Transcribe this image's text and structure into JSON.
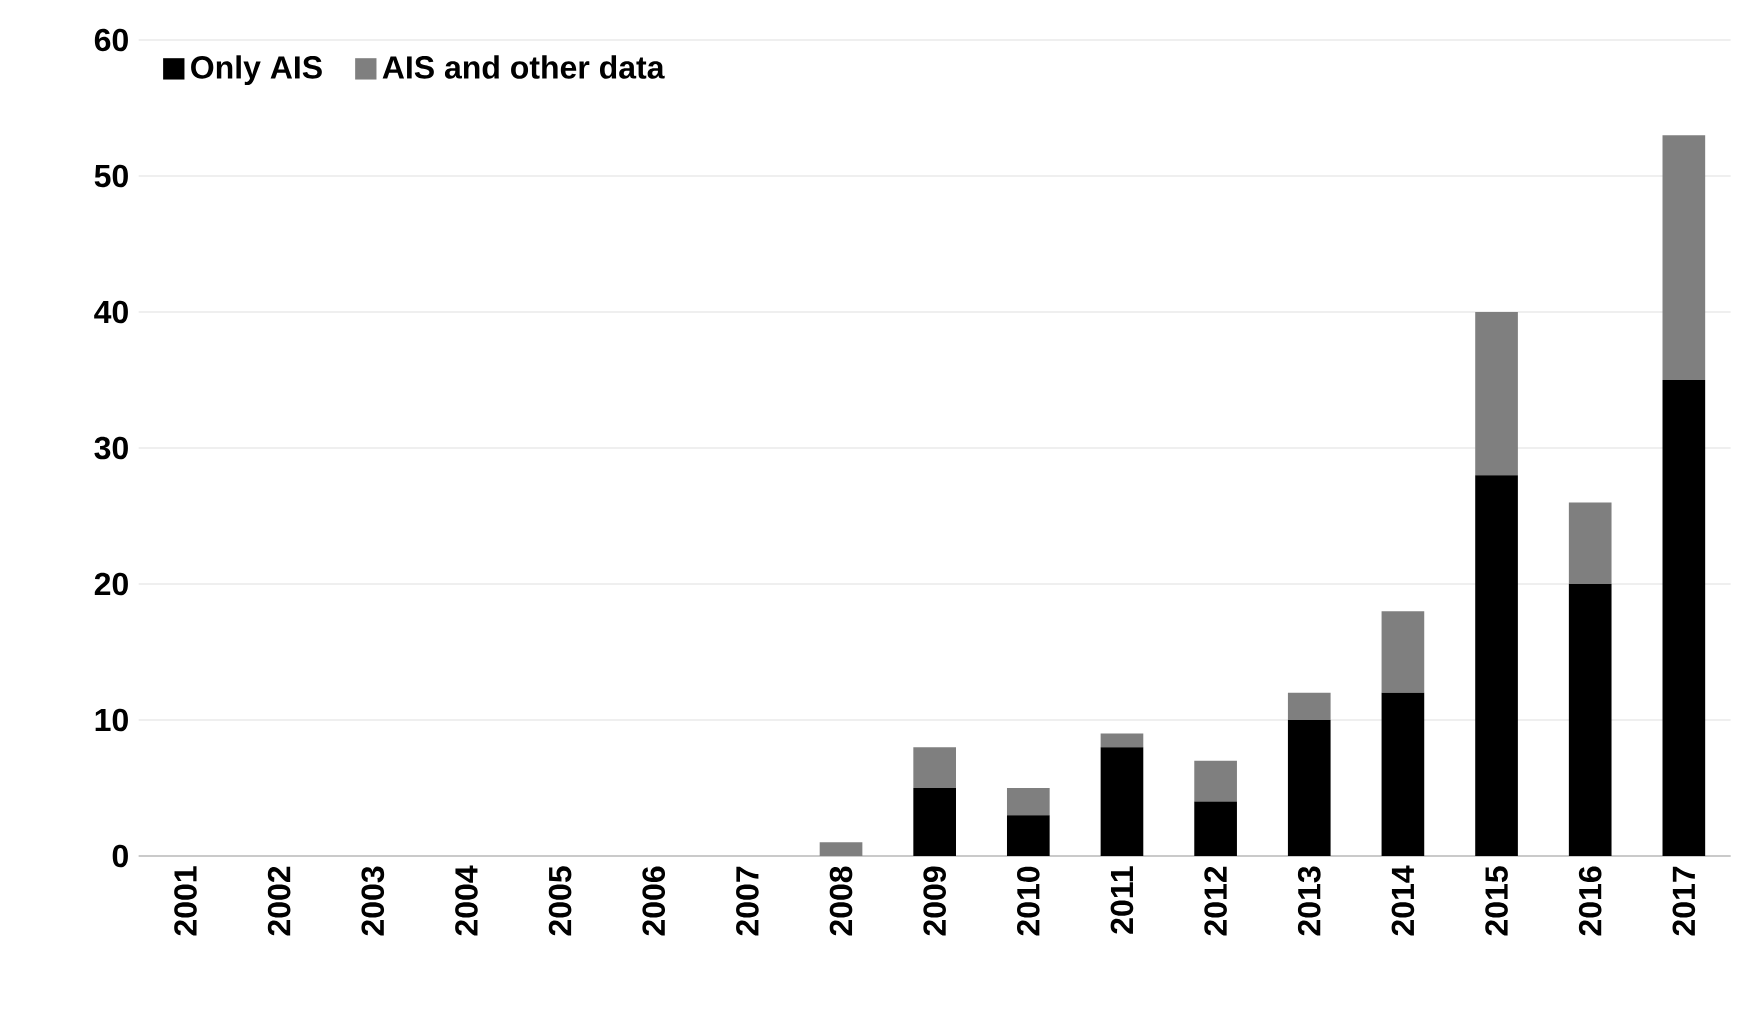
{
  "chart_data": {
    "type": "bar",
    "stacked": true,
    "categories": [
      "2001",
      "2002",
      "2003",
      "2004",
      "2005",
      "2006",
      "2007",
      "2008",
      "2009",
      "2010",
      "2011",
      "2012",
      "2013",
      "2014",
      "2015",
      "2016",
      "2017"
    ],
    "series": [
      {
        "name": "Only AIS",
        "color": "#000000",
        "values": [
          0,
          0,
          0,
          0,
          0,
          0,
          0,
          0,
          5,
          3,
          8,
          4,
          10,
          12,
          28,
          20,
          35
        ]
      },
      {
        "name": "AIS and other data",
        "color": "#7f7f7f",
        "values": [
          0,
          0,
          0,
          0,
          0,
          0,
          0,
          1,
          3,
          2,
          1,
          3,
          2,
          6,
          12,
          6,
          18
        ]
      }
    ],
    "ylim": [
      0,
      60
    ],
    "yticks": [
      0,
      10,
      20,
      30,
      40,
      50,
      60
    ],
    "grid": "y",
    "legend": "top left"
  }
}
